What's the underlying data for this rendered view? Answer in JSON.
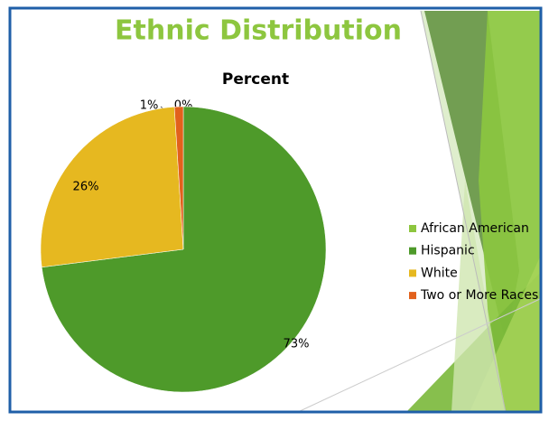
{
  "chart_data": {
    "type": "pie",
    "title": "Ethnic Distribution",
    "subtitle": "Percent",
    "categories": [
      "African American",
      "Hispanic",
      "White",
      "Two or More Races"
    ],
    "values": [
      0,
      73,
      26,
      1
    ],
    "value_labels": [
      "0%",
      "73%",
      "26%",
      "1%"
    ],
    "colors": [
      "#8dc63f",
      "#4e9a2a",
      "#e6b820",
      "#e2611c"
    ],
    "legend": "right"
  }
}
